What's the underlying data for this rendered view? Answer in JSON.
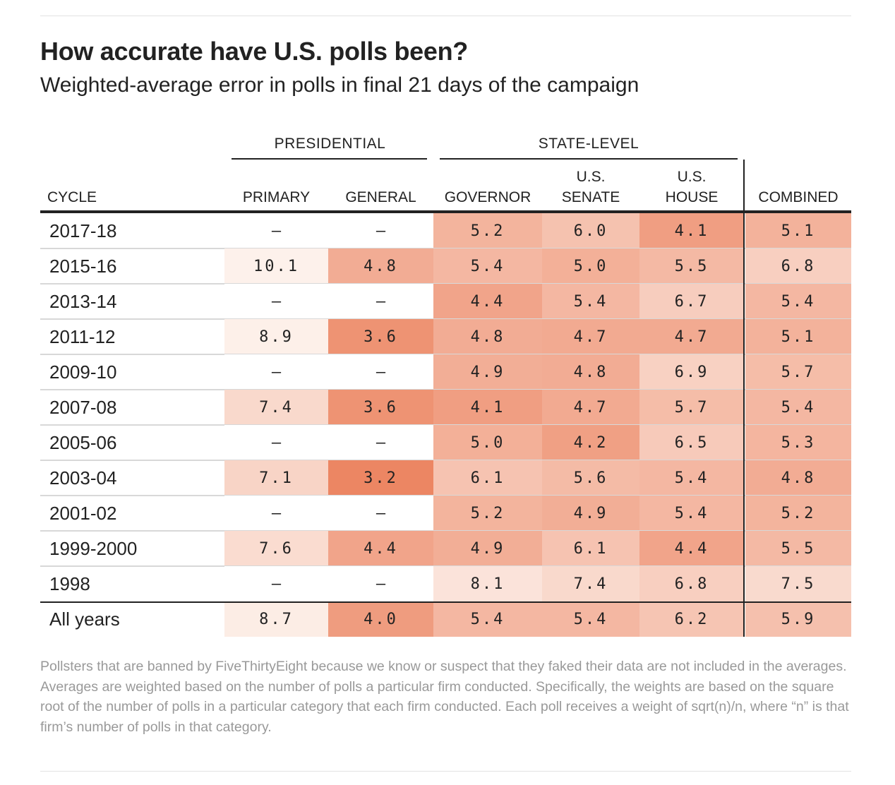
{
  "title": "How accurate have U.S. polls been?",
  "subtitle": "Weighted-average error in polls in final 21 days of the campaign",
  "groups": {
    "presidential": "PRESIDENTIAL",
    "state_level": "STATE-LEVEL"
  },
  "columns": {
    "cycle": "CYCLE",
    "primary": "PRIMARY",
    "general": "GENERAL",
    "governor": "GOVERNOR",
    "senate_1": "U.S.",
    "senate_2": "SENATE",
    "house_1": "U.S.",
    "house_2": "HOUSE",
    "combined": "COMBINED"
  },
  "chart_data": {
    "type": "table",
    "title": "How accurate have U.S. polls been?",
    "subtitle": "Weighted-average error in polls in final 21 days of the campaign",
    "columns": [
      "PRIMARY",
      "GENERAL",
      "GOVERNOR",
      "U.S. SENATE",
      "U.S. HOUSE",
      "COMBINED"
    ],
    "color_scale": {
      "low": "#ee8a66",
      "high": "#fdeee6"
    },
    "rows": [
      {
        "cycle": "2017-18",
        "values": [
          null,
          null,
          5.2,
          6.0,
          4.1,
          5.1
        ]
      },
      {
        "cycle": "2015-16",
        "values": [
          10.1,
          4.8,
          5.4,
          5.0,
          5.5,
          6.8
        ]
      },
      {
        "cycle": "2013-14",
        "values": [
          null,
          null,
          4.4,
          5.4,
          6.7,
          5.4
        ]
      },
      {
        "cycle": "2011-12",
        "values": [
          8.9,
          3.6,
          4.8,
          4.7,
          4.7,
          5.1
        ]
      },
      {
        "cycle": "2009-10",
        "values": [
          null,
          null,
          4.9,
          4.8,
          6.9,
          5.7
        ]
      },
      {
        "cycle": "2007-08",
        "values": [
          7.4,
          3.6,
          4.1,
          4.7,
          5.7,
          5.4
        ]
      },
      {
        "cycle": "2005-06",
        "values": [
          null,
          null,
          5.0,
          4.2,
          6.5,
          5.3
        ]
      },
      {
        "cycle": "2003-04",
        "values": [
          7.1,
          3.2,
          6.1,
          5.6,
          5.4,
          4.8
        ]
      },
      {
        "cycle": "2001-02",
        "values": [
          null,
          null,
          5.2,
          4.9,
          5.4,
          5.2
        ]
      },
      {
        "cycle": "1999-2000",
        "values": [
          7.6,
          4.4,
          4.9,
          6.1,
          4.4,
          5.5
        ]
      },
      {
        "cycle": "1998",
        "values": [
          null,
          null,
          8.1,
          7.4,
          6.8,
          7.5
        ]
      },
      {
        "cycle": "All years",
        "values": [
          8.7,
          4.0,
          5.4,
          5.4,
          6.2,
          5.9
        ]
      }
    ],
    "missing_symbol": "–"
  },
  "footnote": "Pollsters that are banned by FiveThirtyEight because we know or suspect that they faked their data are not included in the averages. Averages are weighted based on the number of polls a particular firm conducted. Specifically, the weights are based on the square root of the number of polls in a particular category that each firm conducted. Each poll receives a weight of sqrt(n)/n, where “n” is that firm’s number of polls in that category."
}
